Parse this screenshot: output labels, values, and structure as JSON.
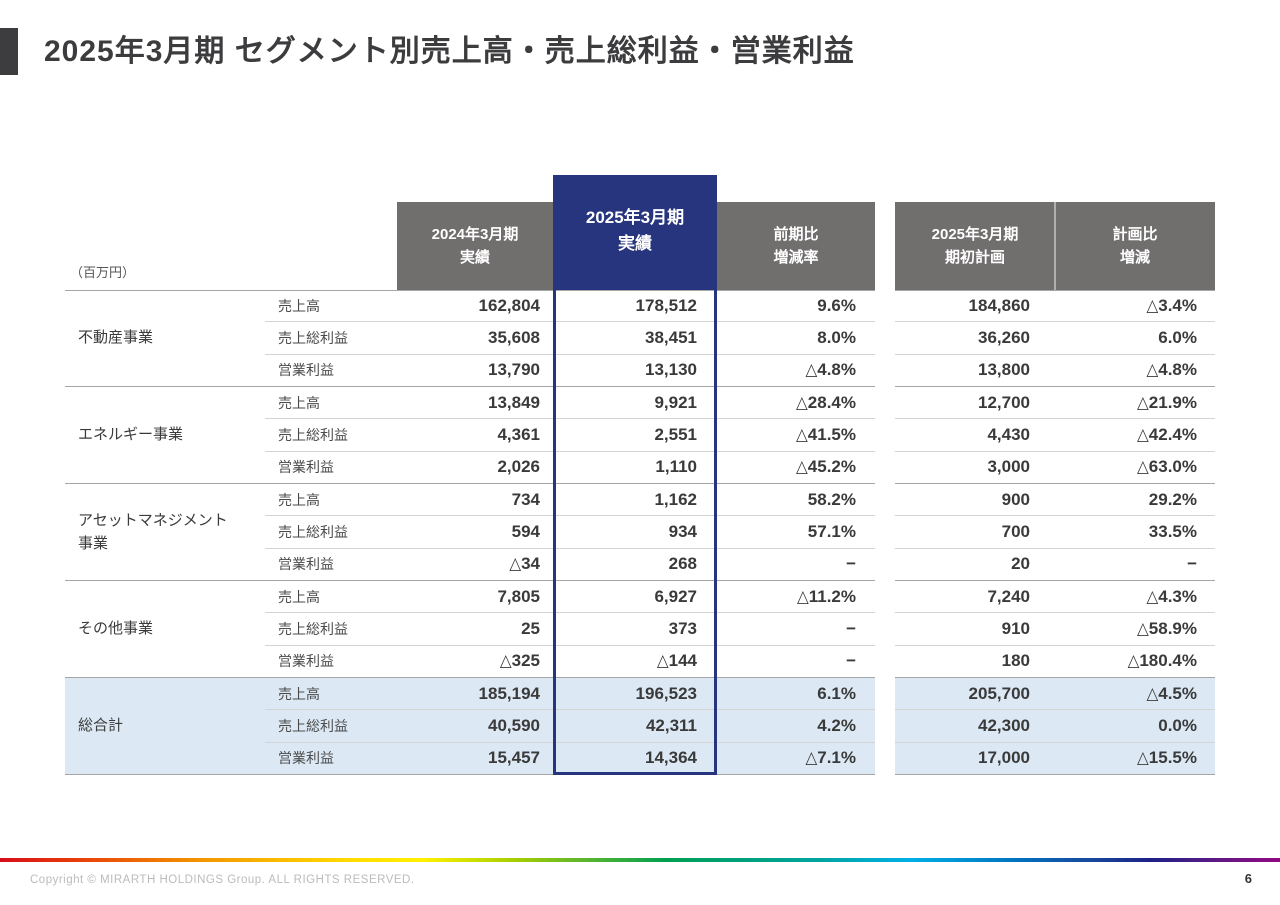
{
  "slide": {
    "title": "2025年3月期 セグメント別売上高・売上総利益・営業利益",
    "page_number": "6",
    "copyright": "Copyright © MIRARTH HOLDINGS Group. ALL RIGHTS RESERVED."
  },
  "colors": {
    "header_gray": "#716e6e",
    "highlight_blue": "#27357e",
    "total_row_bg": "#dce9f5",
    "title_accent": "#3d3d40"
  },
  "table": {
    "unit_label": "（百万円）",
    "headers": {
      "prev": [
        "2024年3月期",
        "実績"
      ],
      "curr": [
        "2025年3月期",
        "実績"
      ],
      "yoy": [
        "前期比",
        "増減率"
      ],
      "plan": [
        "2025年3月期",
        "期初計画"
      ],
      "vs_plan": [
        "計画比",
        "増減"
      ]
    },
    "segments": [
      {
        "name": "不動産事業",
        "total": false,
        "rows": [
          {
            "metric": "売上高",
            "prev": "162,804",
            "curr": "178,512",
            "yoy": "9.6%",
            "plan": "184,860",
            "vs_plan": "△3.4%"
          },
          {
            "metric": "売上総利益",
            "prev": "35,608",
            "curr": "38,451",
            "yoy": "8.0%",
            "plan": "36,260",
            "vs_plan": "6.0%"
          },
          {
            "metric": "営業利益",
            "prev": "13,790",
            "curr": "13,130",
            "yoy": "△4.8%",
            "plan": "13,800",
            "vs_plan": "△4.8%"
          }
        ]
      },
      {
        "name": "エネルギー事業",
        "total": false,
        "rows": [
          {
            "metric": "売上高",
            "prev": "13,849",
            "curr": "9,921",
            "yoy": "△28.4%",
            "plan": "12,700",
            "vs_plan": "△21.9%"
          },
          {
            "metric": "売上総利益",
            "prev": "4,361",
            "curr": "2,551",
            "yoy": "△41.5%",
            "plan": "4,430",
            "vs_plan": "△42.4%"
          },
          {
            "metric": "営業利益",
            "prev": "2,026",
            "curr": "1,110",
            "yoy": "△45.2%",
            "plan": "3,000",
            "vs_plan": "△63.0%"
          }
        ]
      },
      {
        "name": "アセットマネジメント\n事業",
        "total": false,
        "rows": [
          {
            "metric": "売上高",
            "prev": "734",
            "curr": "1,162",
            "yoy": "58.2%",
            "plan": "900",
            "vs_plan": "29.2%"
          },
          {
            "metric": "売上総利益",
            "prev": "594",
            "curr": "934",
            "yoy": "57.1%",
            "plan": "700",
            "vs_plan": "33.5%"
          },
          {
            "metric": "営業利益",
            "prev": "△34",
            "curr": "268",
            "yoy": "−",
            "plan": "20",
            "vs_plan": "−"
          }
        ]
      },
      {
        "name": "その他事業",
        "total": false,
        "rows": [
          {
            "metric": "売上高",
            "prev": "7,805",
            "curr": "6,927",
            "yoy": "△11.2%",
            "plan": "7,240",
            "vs_plan": "△4.3%"
          },
          {
            "metric": "売上総利益",
            "prev": "25",
            "curr": "373",
            "yoy": "−",
            "plan": "910",
            "vs_plan": "△58.9%"
          },
          {
            "metric": "営業利益",
            "prev": "△325",
            "curr": "△144",
            "yoy": "−",
            "plan": "180",
            "vs_plan": "△180.4%"
          }
        ]
      },
      {
        "name": "総合計",
        "total": true,
        "rows": [
          {
            "metric": "売上高",
            "prev": "185,194",
            "curr": "196,523",
            "yoy": "6.1%",
            "plan": "205,700",
            "vs_plan": "△4.5%"
          },
          {
            "metric": "売上総利益",
            "prev": "40,590",
            "curr": "42,311",
            "yoy": "4.2%",
            "plan": "42,300",
            "vs_plan": "0.0%"
          },
          {
            "metric": "営業利益",
            "prev": "15,457",
            "curr": "14,364",
            "yoy": "△7.1%",
            "plan": "17,000",
            "vs_plan": "△15.5%"
          }
        ]
      }
    ]
  }
}
